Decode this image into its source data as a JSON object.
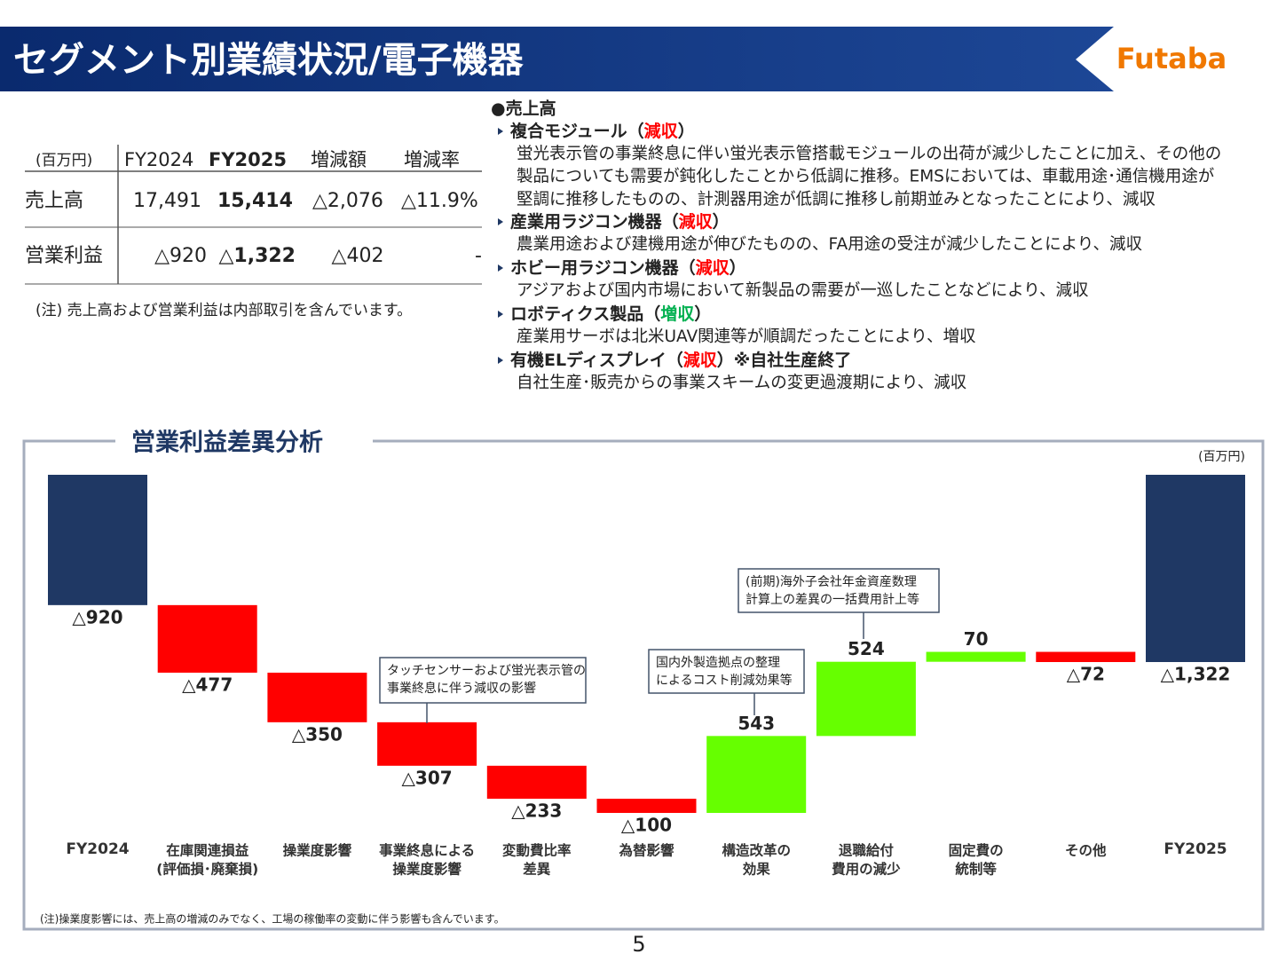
{
  "header": {
    "title": "セグメント別業績状況/電子機器",
    "logo": "Futaba"
  },
  "table": {
    "header": [
      "(百万円)",
      "FY2024",
      "FY2025",
      "増減額",
      "増減率"
    ],
    "rows": [
      [
        "売上高",
        "17,491",
        "15,414",
        "△2,076",
        "△11.9%"
      ],
      [
        "営業利益",
        "△920",
        "△1,322",
        "△402",
        "-"
      ]
    ],
    "note": "(注) 売上高および営業利益は内部取引を含んでいます。"
  },
  "sales": {
    "heading": "●売上高",
    "items": [
      {
        "title": [
          {
            "text": "複合モジュール（"
          },
          {
            "text": "減収",
            "color": "#ff0000"
          },
          {
            "text": "）"
          }
        ],
        "lines": [
          "蛍光表示管の事業終息に伴い蛍光表示管搭載モジュールの出荷が減少したことに加え、その他の",
          "製品についても需要が鈍化したことから低調に推移。EMSにおいては、車載用途･通信機用途が",
          "堅調に推移したものの、計測器用途が低調に推移し前期並みとなったことにより、減収"
        ]
      },
      {
        "title": [
          {
            "text": "産業用ラジコン機器（"
          },
          {
            "text": "減収",
            "color": "#ff0000"
          },
          {
            "text": "）"
          }
        ],
        "lines": [
          "農業用途および建機用途が伸びたものの、FA用途の受注が減少したことにより、減収"
        ]
      },
      {
        "title": [
          {
            "text": "ホビー用ラジコン機器（"
          },
          {
            "text": "減収",
            "color": "#ff0000"
          },
          {
            "text": "）"
          }
        ],
        "lines": [
          "アジアおよび国内市場において新製品の需要が一巡したことなどにより、減収"
        ]
      },
      {
        "title": [
          {
            "text": "ロボティクス製品（"
          },
          {
            "text": "増収",
            "color": "#00b050"
          },
          {
            "text": "）"
          }
        ],
        "lines": [
          "産業用サーボは北米UAV関連等が順調だったことにより、増収"
        ]
      },
      {
        "title": [
          {
            "text": "有機ELディスプレイ（"
          },
          {
            "text": "減収",
            "color": "#ff0000"
          },
          {
            "text": "）※自社生産終了"
          }
        ],
        "lines": [
          "自社生産･販売からの事業スキームの変更過渡期により、減収"
        ]
      }
    ]
  },
  "chart_data": {
    "type": "waterfall",
    "title": "営業利益差異分析",
    "unit": "(百万円)",
    "categories": [
      [
        "FY2024"
      ],
      [
        "在庫関連損益",
        "(評価損･廃棄損)"
      ],
      [
        "操業度影響"
      ],
      [
        "事業終息による",
        "操業度影響"
      ],
      [
        "変動費比率",
        "差異"
      ],
      [
        "為替影響"
      ],
      [
        "構造改革の",
        "効果"
      ],
      [
        "退職給付",
        "費用の減少"
      ],
      [
        "固定費の",
        "統制等"
      ],
      [
        "その他"
      ],
      [
        "FY2025"
      ]
    ],
    "values": [
      -920,
      -477,
      -350,
      -307,
      -233,
      -100,
      543,
      524,
      70,
      -72,
      -1322
    ],
    "value_labels": [
      "△920",
      "△477",
      "△350",
      "△307",
      "△233",
      "△100",
      "543",
      "524",
      "70",
      "△72",
      "△1,322"
    ],
    "is_total": [
      true,
      false,
      false,
      false,
      false,
      false,
      false,
      false,
      false,
      false,
      true
    ],
    "colors": {
      "total": "#1f3864",
      "decrease": "#ff0000",
      "increase": "#66ff00"
    },
    "annotations": [
      {
        "lines": [
          "タッチセンサーおよび蛍光表示管の",
          "事業終息に伴う減収の影響"
        ]
      },
      {
        "lines": [
          "国内外製造拠点の整理",
          "によるコスト削減効果等"
        ]
      },
      {
        "lines": [
          "(前期)海外子会社年金資産数理",
          "計算上の差異の一括費用計上等"
        ]
      }
    ],
    "note": "(注)操業度影響には、売上高の増減のみでなく、工場の稼働率の変動に伴う影響も含んでいます。"
  },
  "page_number": "5"
}
